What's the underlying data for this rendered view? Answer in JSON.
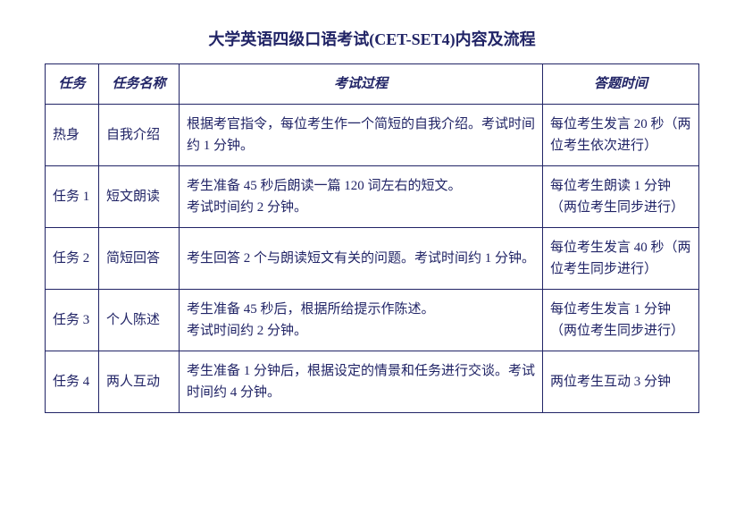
{
  "title": "大学英语四级口语考试(CET-SET4)内容及流程",
  "headers": {
    "col1": "任务",
    "col2": "任务名称",
    "col3": "考试过程",
    "col4": "答题时间"
  },
  "rows": [
    {
      "task": "热身",
      "name": "自我介绍",
      "process": "根据考官指令，每位考生作一个简短的自我介绍。考试时间约 1 分钟。",
      "timing": "每位考生发言 20 秒（两位考生依次进行）"
    },
    {
      "task": "任务 1",
      "name": "短文朗读",
      "process": "考生准备 45 秒后朗读一篇 120 词左右的短文。\n考试时间约 2 分钟。",
      "timing": "每位考生朗读 1 分钟（两位考生同步进行）"
    },
    {
      "task": "任务 2",
      "name": "简短回答",
      "process": "考生回答 2 个与朗读短文有关的问题。考试时间约 1 分钟。",
      "timing": "每位考生发言 40 秒（两位考生同步进行）"
    },
    {
      "task": "任务 3",
      "name": "个人陈述",
      "process": "考生准备 45 秒后，根据所给提示作陈述。\n考试时间约 2 分钟。",
      "timing": "每位考生发言 1 分钟（两位考生同步进行）"
    },
    {
      "task": "任务 4",
      "name": "两人互动",
      "process": "考生准备 1 分钟后，根据设定的情景和任务进行交谈。考试时间约 4 分钟。",
      "timing": "两位考生互动 3 分钟"
    }
  ]
}
